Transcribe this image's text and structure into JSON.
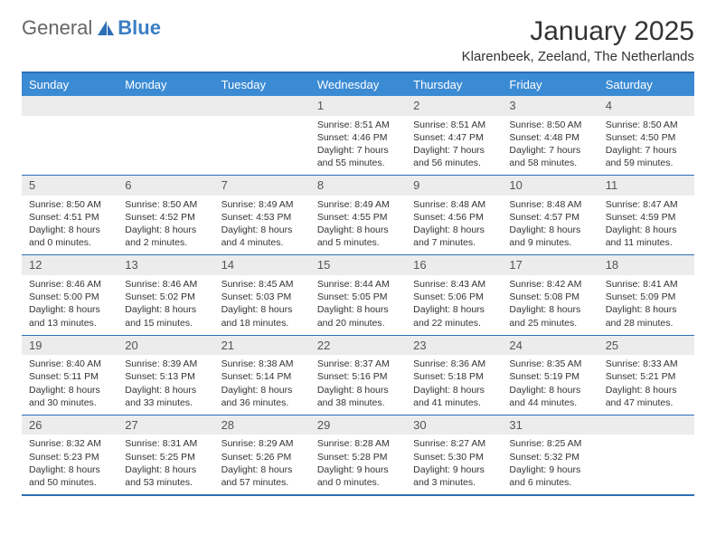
{
  "logo": {
    "text1": "General",
    "text2": "Blue"
  },
  "title": "January 2025",
  "location": "Klarenbeek, Zeeland, The Netherlands",
  "colors": {
    "header_bg": "#3b8bd4",
    "header_text": "#ffffff",
    "border": "#2d6fb5",
    "daynum_bg": "#ececec",
    "text": "#333333"
  },
  "day_headers": [
    "Sunday",
    "Monday",
    "Tuesday",
    "Wednesday",
    "Thursday",
    "Friday",
    "Saturday"
  ],
  "weeks": [
    [
      {
        "n": "",
        "t": ""
      },
      {
        "n": "",
        "t": ""
      },
      {
        "n": "",
        "t": ""
      },
      {
        "n": "1",
        "t": "Sunrise: 8:51 AM\nSunset: 4:46 PM\nDaylight: 7 hours and 55 minutes."
      },
      {
        "n": "2",
        "t": "Sunrise: 8:51 AM\nSunset: 4:47 PM\nDaylight: 7 hours and 56 minutes."
      },
      {
        "n": "3",
        "t": "Sunrise: 8:50 AM\nSunset: 4:48 PM\nDaylight: 7 hours and 58 minutes."
      },
      {
        "n": "4",
        "t": "Sunrise: 8:50 AM\nSunset: 4:50 PM\nDaylight: 7 hours and 59 minutes."
      }
    ],
    [
      {
        "n": "5",
        "t": "Sunrise: 8:50 AM\nSunset: 4:51 PM\nDaylight: 8 hours and 0 minutes."
      },
      {
        "n": "6",
        "t": "Sunrise: 8:50 AM\nSunset: 4:52 PM\nDaylight: 8 hours and 2 minutes."
      },
      {
        "n": "7",
        "t": "Sunrise: 8:49 AM\nSunset: 4:53 PM\nDaylight: 8 hours and 4 minutes."
      },
      {
        "n": "8",
        "t": "Sunrise: 8:49 AM\nSunset: 4:55 PM\nDaylight: 8 hours and 5 minutes."
      },
      {
        "n": "9",
        "t": "Sunrise: 8:48 AM\nSunset: 4:56 PM\nDaylight: 8 hours and 7 minutes."
      },
      {
        "n": "10",
        "t": "Sunrise: 8:48 AM\nSunset: 4:57 PM\nDaylight: 8 hours and 9 minutes."
      },
      {
        "n": "11",
        "t": "Sunrise: 8:47 AM\nSunset: 4:59 PM\nDaylight: 8 hours and 11 minutes."
      }
    ],
    [
      {
        "n": "12",
        "t": "Sunrise: 8:46 AM\nSunset: 5:00 PM\nDaylight: 8 hours and 13 minutes."
      },
      {
        "n": "13",
        "t": "Sunrise: 8:46 AM\nSunset: 5:02 PM\nDaylight: 8 hours and 15 minutes."
      },
      {
        "n": "14",
        "t": "Sunrise: 8:45 AM\nSunset: 5:03 PM\nDaylight: 8 hours and 18 minutes."
      },
      {
        "n": "15",
        "t": "Sunrise: 8:44 AM\nSunset: 5:05 PM\nDaylight: 8 hours and 20 minutes."
      },
      {
        "n": "16",
        "t": "Sunrise: 8:43 AM\nSunset: 5:06 PM\nDaylight: 8 hours and 22 minutes."
      },
      {
        "n": "17",
        "t": "Sunrise: 8:42 AM\nSunset: 5:08 PM\nDaylight: 8 hours and 25 minutes."
      },
      {
        "n": "18",
        "t": "Sunrise: 8:41 AM\nSunset: 5:09 PM\nDaylight: 8 hours and 28 minutes."
      }
    ],
    [
      {
        "n": "19",
        "t": "Sunrise: 8:40 AM\nSunset: 5:11 PM\nDaylight: 8 hours and 30 minutes."
      },
      {
        "n": "20",
        "t": "Sunrise: 8:39 AM\nSunset: 5:13 PM\nDaylight: 8 hours and 33 minutes."
      },
      {
        "n": "21",
        "t": "Sunrise: 8:38 AM\nSunset: 5:14 PM\nDaylight: 8 hours and 36 minutes."
      },
      {
        "n": "22",
        "t": "Sunrise: 8:37 AM\nSunset: 5:16 PM\nDaylight: 8 hours and 38 minutes."
      },
      {
        "n": "23",
        "t": "Sunrise: 8:36 AM\nSunset: 5:18 PM\nDaylight: 8 hours and 41 minutes."
      },
      {
        "n": "24",
        "t": "Sunrise: 8:35 AM\nSunset: 5:19 PM\nDaylight: 8 hours and 44 minutes."
      },
      {
        "n": "25",
        "t": "Sunrise: 8:33 AM\nSunset: 5:21 PM\nDaylight: 8 hours and 47 minutes."
      }
    ],
    [
      {
        "n": "26",
        "t": "Sunrise: 8:32 AM\nSunset: 5:23 PM\nDaylight: 8 hours and 50 minutes."
      },
      {
        "n": "27",
        "t": "Sunrise: 8:31 AM\nSunset: 5:25 PM\nDaylight: 8 hours and 53 minutes."
      },
      {
        "n": "28",
        "t": "Sunrise: 8:29 AM\nSunset: 5:26 PM\nDaylight: 8 hours and 57 minutes."
      },
      {
        "n": "29",
        "t": "Sunrise: 8:28 AM\nSunset: 5:28 PM\nDaylight: 9 hours and 0 minutes."
      },
      {
        "n": "30",
        "t": "Sunrise: 8:27 AM\nSunset: 5:30 PM\nDaylight: 9 hours and 3 minutes."
      },
      {
        "n": "31",
        "t": "Sunrise: 8:25 AM\nSunset: 5:32 PM\nDaylight: 9 hours and 6 minutes."
      },
      {
        "n": "",
        "t": ""
      }
    ]
  ]
}
